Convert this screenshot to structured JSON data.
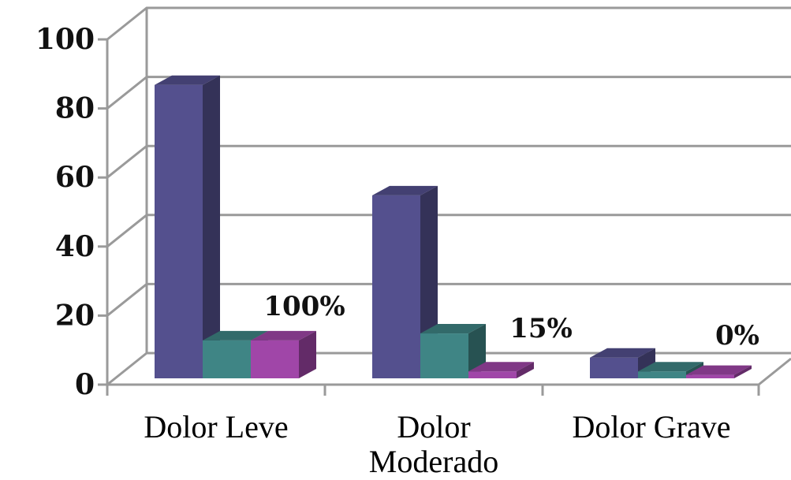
{
  "chart_data": {
    "type": "bar",
    "categories": [
      "Dolor Leve",
      "Dolor Moderado",
      "Dolor Grave"
    ],
    "series": [
      {
        "values": [
          85,
          53,
          6
        ],
        "color": "#54508e"
      },
      {
        "values": [
          11,
          13,
          2
        ],
        "color": "#3f8585"
      },
      {
        "values": [
          11,
          2,
          1
        ],
        "color": "#a046a8"
      }
    ],
    "data_labels": [
      "100%",
      "15%",
      "0%"
    ],
    "ylim": [
      0,
      100
    ],
    "yticks": [
      0,
      20,
      40,
      60,
      80,
      100
    ],
    "grid": true,
    "style": "3d-clustered-column"
  }
}
